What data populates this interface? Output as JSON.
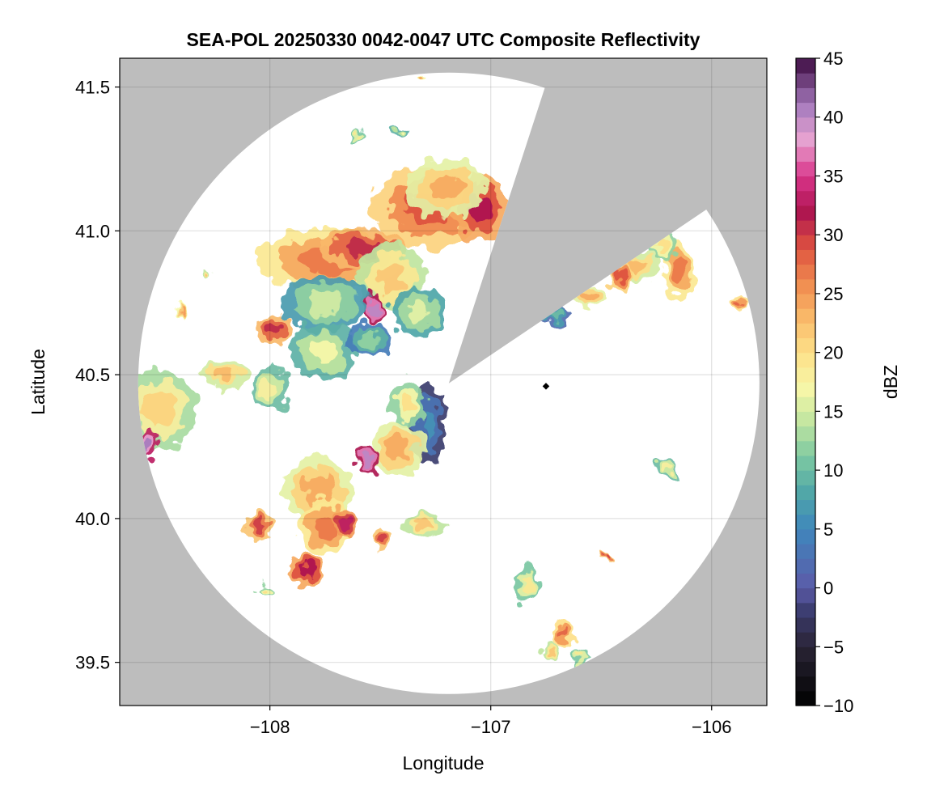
{
  "chart_data": {
    "type": "heatmap",
    "title": "SEA-POL 20250330 0042-0047 UTC Composite Reflectivity",
    "xlabel": "Longitude",
    "ylabel": "Latitude",
    "xlim": [
      -108.68,
      -105.75
    ],
    "ylim": [
      39.35,
      41.6
    ],
    "x_ticks": [
      -108,
      -107,
      -106
    ],
    "x_tick_labels": [
      "−108",
      "−107",
      "−106"
    ],
    "y_ticks": [
      39.5,
      40.0,
      40.5,
      41.0,
      41.5
    ],
    "y_tick_labels": [
      "39.5",
      "40.0",
      "40.5",
      "41.0",
      "41.5"
    ],
    "grid": true,
    "background_color": "#bdbdbd",
    "radar_center": {
      "lon": -107.19,
      "lat": 40.47
    },
    "radar_range_lat_deg": 1.08,
    "blocked_sectors_bearing_deg": [
      [
        18,
        56
      ]
    ],
    "station_marker": {
      "lon": -106.75,
      "lat": 40.46
    },
    "colorbar": {
      "label": "dBZ",
      "min": -10,
      "max": 45,
      "ticks": [
        -10,
        -5,
        0,
        5,
        10,
        15,
        20,
        25,
        30,
        35,
        40,
        45
      ],
      "tick_labels": [
        "−10",
        "−5",
        "0",
        "5",
        "10",
        "15",
        "20",
        "25",
        "30",
        "35",
        "40",
        "45"
      ],
      "colormap_stops": [
        {
          "v": -10,
          "c": "#000000"
        },
        {
          "v": -5,
          "c": "#2a2436"
        },
        {
          "v": -2,
          "c": "#3b3c6e"
        },
        {
          "v": 0,
          "c": "#5b5aa8"
        },
        {
          "v": 5,
          "c": "#3f86bc"
        },
        {
          "v": 8,
          "c": "#4fa6a8"
        },
        {
          "v": 11,
          "c": "#7ac7a2"
        },
        {
          "v": 14,
          "c": "#bfe5a0"
        },
        {
          "v": 17,
          "c": "#f7f7a8"
        },
        {
          "v": 20,
          "c": "#fde089"
        },
        {
          "v": 23,
          "c": "#f9b969"
        },
        {
          "v": 26,
          "c": "#f08a4f"
        },
        {
          "v": 29,
          "c": "#dd5140"
        },
        {
          "v": 32,
          "c": "#ad1450"
        },
        {
          "v": 35,
          "c": "#d9358a"
        },
        {
          "v": 38,
          "c": "#e8a3d1"
        },
        {
          "v": 41,
          "c": "#a67bbd"
        },
        {
          "v": 45,
          "c": "#3c0a40"
        }
      ]
    },
    "echo_cells": [
      {
        "lon": -107.28,
        "lat": 41.08,
        "rx": 0.26,
        "ry": 0.14,
        "dbz": 29
      },
      {
        "lon": -107.05,
        "lat": 41.08,
        "rx": 0.12,
        "ry": 0.12,
        "dbz": 32
      },
      {
        "lon": -107.2,
        "lat": 41.15,
        "rx": 0.18,
        "ry": 0.1,
        "dbz": 24
      },
      {
        "lon": -107.72,
        "lat": 40.9,
        "rx": 0.34,
        "ry": 0.11,
        "dbz": 27
      },
      {
        "lon": -107.58,
        "lat": 40.94,
        "rx": 0.2,
        "ry": 0.07,
        "dbz": 31
      },
      {
        "lon": -107.45,
        "lat": 40.84,
        "rx": 0.16,
        "ry": 0.12,
        "dbz": 22
      },
      {
        "lon": -107.52,
        "lat": 40.73,
        "rx": 0.05,
        "ry": 0.05,
        "dbz": 40
      },
      {
        "lon": -107.75,
        "lat": 40.75,
        "rx": 0.2,
        "ry": 0.1,
        "dbz": 15
      },
      {
        "lon": -107.98,
        "lat": 40.66,
        "rx": 0.08,
        "ry": 0.06,
        "dbz": 31
      },
      {
        "lon": -107.76,
        "lat": 40.58,
        "rx": 0.15,
        "ry": 0.1,
        "dbz": 17
      },
      {
        "lon": -107.55,
        "lat": 40.62,
        "rx": 0.1,
        "ry": 0.06,
        "dbz": 12
      },
      {
        "lon": -107.33,
        "lat": 40.72,
        "rx": 0.12,
        "ry": 0.09,
        "dbz": 16
      },
      {
        "lon": -107.28,
        "lat": 40.33,
        "rx": 0.08,
        "ry": 0.14,
        "dbz": 6
      },
      {
        "lon": -107.38,
        "lat": 40.4,
        "rx": 0.08,
        "ry": 0.08,
        "dbz": 20
      },
      {
        "lon": -107.42,
        "lat": 40.24,
        "rx": 0.12,
        "ry": 0.1,
        "dbz": 24
      },
      {
        "lon": -107.55,
        "lat": 40.2,
        "rx": 0.05,
        "ry": 0.05,
        "dbz": 40
      },
      {
        "lon": -107.78,
        "lat": 40.1,
        "rx": 0.16,
        "ry": 0.12,
        "dbz": 24
      },
      {
        "lon": -107.75,
        "lat": 39.97,
        "rx": 0.12,
        "ry": 0.1,
        "dbz": 27
      },
      {
        "lon": -107.84,
        "lat": 39.82,
        "rx": 0.07,
        "ry": 0.06,
        "dbz": 32
      },
      {
        "lon": -108.05,
        "lat": 39.97,
        "rx": 0.07,
        "ry": 0.05,
        "dbz": 30
      },
      {
        "lon": -107.66,
        "lat": 39.98,
        "rx": 0.05,
        "ry": 0.05,
        "dbz": 33
      },
      {
        "lon": -107.5,
        "lat": 39.92,
        "rx": 0.04,
        "ry": 0.04,
        "dbz": 30
      },
      {
        "lon": -107.3,
        "lat": 39.98,
        "rx": 0.1,
        "ry": 0.04,
        "dbz": 22
      },
      {
        "lon": -108.5,
        "lat": 40.38,
        "rx": 0.17,
        "ry": 0.14,
        "dbz": 21
      },
      {
        "lon": -108.55,
        "lat": 40.26,
        "rx": 0.05,
        "ry": 0.05,
        "dbz": 41
      },
      {
        "lon": -108.2,
        "lat": 40.5,
        "rx": 0.1,
        "ry": 0.05,
        "dbz": 23
      },
      {
        "lon": -108.0,
        "lat": 40.45,
        "rx": 0.08,
        "ry": 0.08,
        "dbz": 18
      },
      {
        "lon": -108.28,
        "lat": 40.85,
        "rx": 0.02,
        "ry": 0.02,
        "dbz": 22
      },
      {
        "lon": -108.41,
        "lat": 40.73,
        "rx": 0.02,
        "ry": 0.03,
        "dbz": 25
      },
      {
        "lon": -108.02,
        "lat": 39.75,
        "rx": 0.05,
        "ry": 0.02,
        "dbz": 20
      },
      {
        "lon": -107.4,
        "lat": 41.34,
        "rx": 0.04,
        "ry": 0.02,
        "dbz": 17
      },
      {
        "lon": -107.6,
        "lat": 41.33,
        "rx": 0.03,
        "ry": 0.02,
        "dbz": 19
      },
      {
        "lon": -107.3,
        "lat": 41.54,
        "rx": 0.03,
        "ry": 0.01,
        "dbz": 25
      },
      {
        "lon": -106.35,
        "lat": 40.88,
        "rx": 0.12,
        "ry": 0.06,
        "dbz": 23
      },
      {
        "lon": -106.42,
        "lat": 40.84,
        "rx": 0.05,
        "ry": 0.05,
        "dbz": 29
      },
      {
        "lon": -106.15,
        "lat": 40.86,
        "rx": 0.07,
        "ry": 0.1,
        "dbz": 27
      },
      {
        "lon": -106.22,
        "lat": 40.95,
        "rx": 0.06,
        "ry": 0.06,
        "dbz": 20
      },
      {
        "lon": -105.88,
        "lat": 40.75,
        "rx": 0.03,
        "ry": 0.03,
        "dbz": 28
      },
      {
        "lon": -106.7,
        "lat": 40.7,
        "rx": 0.07,
        "ry": 0.03,
        "dbz": 10
      },
      {
        "lon": -106.56,
        "lat": 40.77,
        "rx": 0.08,
        "ry": 0.04,
        "dbz": 24
      },
      {
        "lon": -106.2,
        "lat": 40.17,
        "rx": 0.05,
        "ry": 0.03,
        "dbz": 18
      },
      {
        "lon": -106.48,
        "lat": 39.86,
        "rx": 0.02,
        "ry": 0.02,
        "dbz": 30
      },
      {
        "lon": -106.84,
        "lat": 39.77,
        "rx": 0.05,
        "ry": 0.07,
        "dbz": 19
      },
      {
        "lon": -106.67,
        "lat": 39.6,
        "rx": 0.05,
        "ry": 0.05,
        "dbz": 28
      },
      {
        "lon": -106.73,
        "lat": 39.54,
        "rx": 0.04,
        "ry": 0.03,
        "dbz": 22
      },
      {
        "lon": -106.6,
        "lat": 39.52,
        "rx": 0.05,
        "ry": 0.02,
        "dbz": 19
      }
    ]
  }
}
